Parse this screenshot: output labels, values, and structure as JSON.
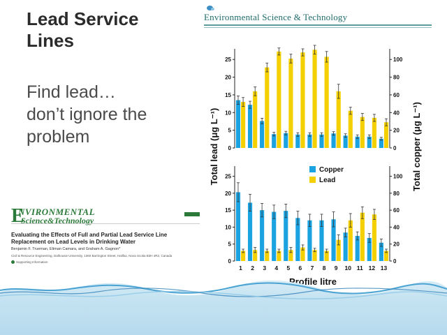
{
  "slide": {
    "title_line1": "Lead Service",
    "title_line2": "Lines",
    "body_line1": "Find lead…",
    "body_line2": "don’t ignore the",
    "body_line3": "problem"
  },
  "journal": {
    "name": "Environmental Science & Technology"
  },
  "paper": {
    "logo_line1": "NVIRONMENTAL",
    "logo_line2": "Science&Technology",
    "logo_letter": "E",
    "title": "Evaluating the Effects of Full and Partial Lead Service Line Replacement on Lead Levels in Drinking Water",
    "authors": "Benjamin F. Trueman, Eliman Camara, and Graham A. Gagnon*",
    "affiliation": "Civil & Resource Engineering, Dalhousie University, 1360 Barrington Street, Halifax, Nova Scotia B3H 4R2, Canada",
    "support": "Supporting Information"
  },
  "chart_data": {
    "type": "bar",
    "xlabel": "Profile litre",
    "ylabel_left": "Total lead (μg L⁻¹)",
    "ylabel_right": "Total copper (μg L⁻¹)",
    "categories": [
      "1",
      "2",
      "3",
      "4",
      "5",
      "6",
      "7",
      "8",
      "9",
      "10",
      "11",
      "12",
      "13"
    ],
    "colors": {
      "copper": "#1aa3e0",
      "lead": "#f5d000"
    },
    "legend": [
      "Copper",
      "Lead"
    ],
    "lead_ylim": [
      0,
      28
    ],
    "lead_yticks": [
      0,
      5,
      10,
      15,
      20,
      25
    ],
    "copper_ylim": [
      0,
      112
    ],
    "copper_yticks": [
      0,
      20,
      40,
      60,
      80,
      100
    ],
    "panels": [
      {
        "name": "top",
        "series": [
          {
            "name": "Copper",
            "values": [
              13.5,
              12.2,
              7.6,
              3.9,
              4.2,
              3.8,
              3.8,
              3.8,
              4.1,
              3.5,
              3.2,
              3.2,
              2.6
            ],
            "errors": [
              1.2,
              1.0,
              0.8,
              0.5,
              0.5,
              0.5,
              0.5,
              0.5,
              0.5,
              0.5,
              0.5,
              0.5,
              0.4
            ]
          },
          {
            "name": "Lead",
            "values": [
              52,
              64,
              91,
              109,
              101,
              108,
              111,
              103,
              64,
              42,
              35,
              34,
              29
            ],
            "errors": [
              5,
              5,
              5,
              4,
              5,
              4,
              5,
              6,
              8,
              4,
              4,
              4,
              4
            ]
          }
        ]
      },
      {
        "name": "bottom",
        "series": [
          {
            "name": "Copper",
            "values": [
              20.3,
              17.2,
              15.0,
              14.5,
              14.8,
              12.7,
              12.0,
              12.0,
              12.3,
              8.4,
              7.4,
              6.8,
              5.4
            ],
            "errors": [
              2.8,
              2.5,
              2.0,
              2.0,
              2.0,
              2.0,
              1.8,
              1.8,
              2.2,
              1.3,
              1.2,
              1.3,
              1.1
            ]
          },
          {
            "name": "Lead",
            "values": [
              12,
              13,
              12,
              12,
              13,
              16,
              13,
              12,
              25,
              48,
              57,
              55,
              12
            ],
            "errors": [
              2,
              3,
              2,
              2,
              3,
              3,
              2,
              2,
              6,
              8,
              7,
              6,
              2
            ]
          }
        ]
      }
    ]
  }
}
